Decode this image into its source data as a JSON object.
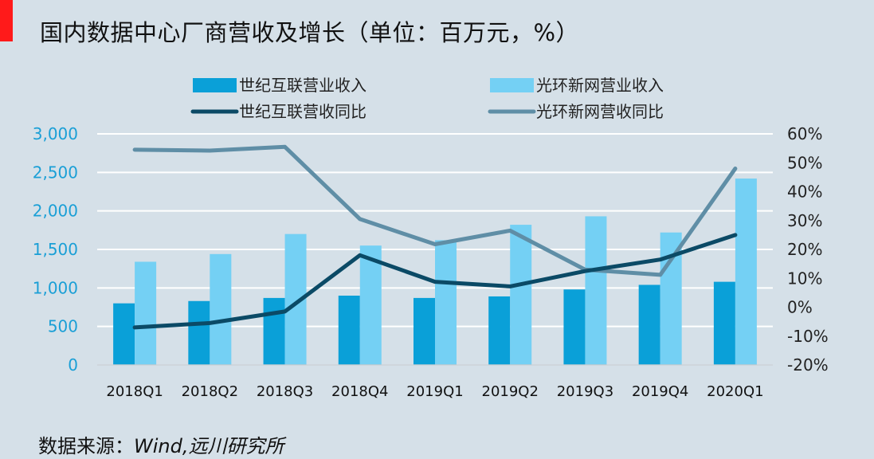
{
  "title": "国内数据中心厂商营收及增长（单位：百万元，%）",
  "source": {
    "label": "数据来源：",
    "value": "Wind,远川研究所"
  },
  "colors": {
    "accent": "#ff1a1a",
    "bar1": "#0aa0d8",
    "bar2": "#74d0f4",
    "line1": "#0b4a66",
    "line2": "#5f8ea6",
    "grid": "#ffffff",
    "left_axis_text": "#1a9fd6"
  },
  "chart_data": {
    "type": "bar",
    "categories": [
      "2018Q1",
      "2018Q2",
      "2018Q3",
      "2018Q4",
      "2019Q1",
      "2019Q2",
      "2019Q3",
      "2019Q4",
      "2020Q1"
    ],
    "series": [
      {
        "name": "世纪互联营业收入",
        "type": "bar",
        "axis": "left",
        "values": [
          800,
          830,
          870,
          900,
          870,
          890,
          980,
          1040,
          1080
        ]
      },
      {
        "name": "光环新网营业收入",
        "type": "bar",
        "axis": "left",
        "values": [
          1340,
          1440,
          1700,
          1550,
          1620,
          1820,
          1930,
          1720,
          2420
        ]
      },
      {
        "name": "世纪互联营收同比",
        "type": "line",
        "axis": "right",
        "values": [
          -7,
          -5.5,
          -1.5,
          18,
          8.8,
          7.2,
          12.5,
          16.5,
          25
        ]
      },
      {
        "name": "光环新网营收同比",
        "type": "line",
        "axis": "right",
        "values": [
          54.5,
          54.2,
          55.5,
          30.5,
          21.8,
          26.5,
          13,
          11.2,
          48
        ]
      }
    ],
    "left_axis": {
      "min": 0,
      "max": 3000,
      "ticks": [
        "0",
        "500",
        "1,000",
        "1,500",
        "2,000",
        "2,500",
        "3,000"
      ]
    },
    "right_axis": {
      "min": -20,
      "max": 60,
      "ticks": [
        "-20%",
        "-10%",
        "0%",
        "10%",
        "20%",
        "30%",
        "40%",
        "50%",
        "60%"
      ]
    },
    "grid": true,
    "legend_position": "top"
  }
}
